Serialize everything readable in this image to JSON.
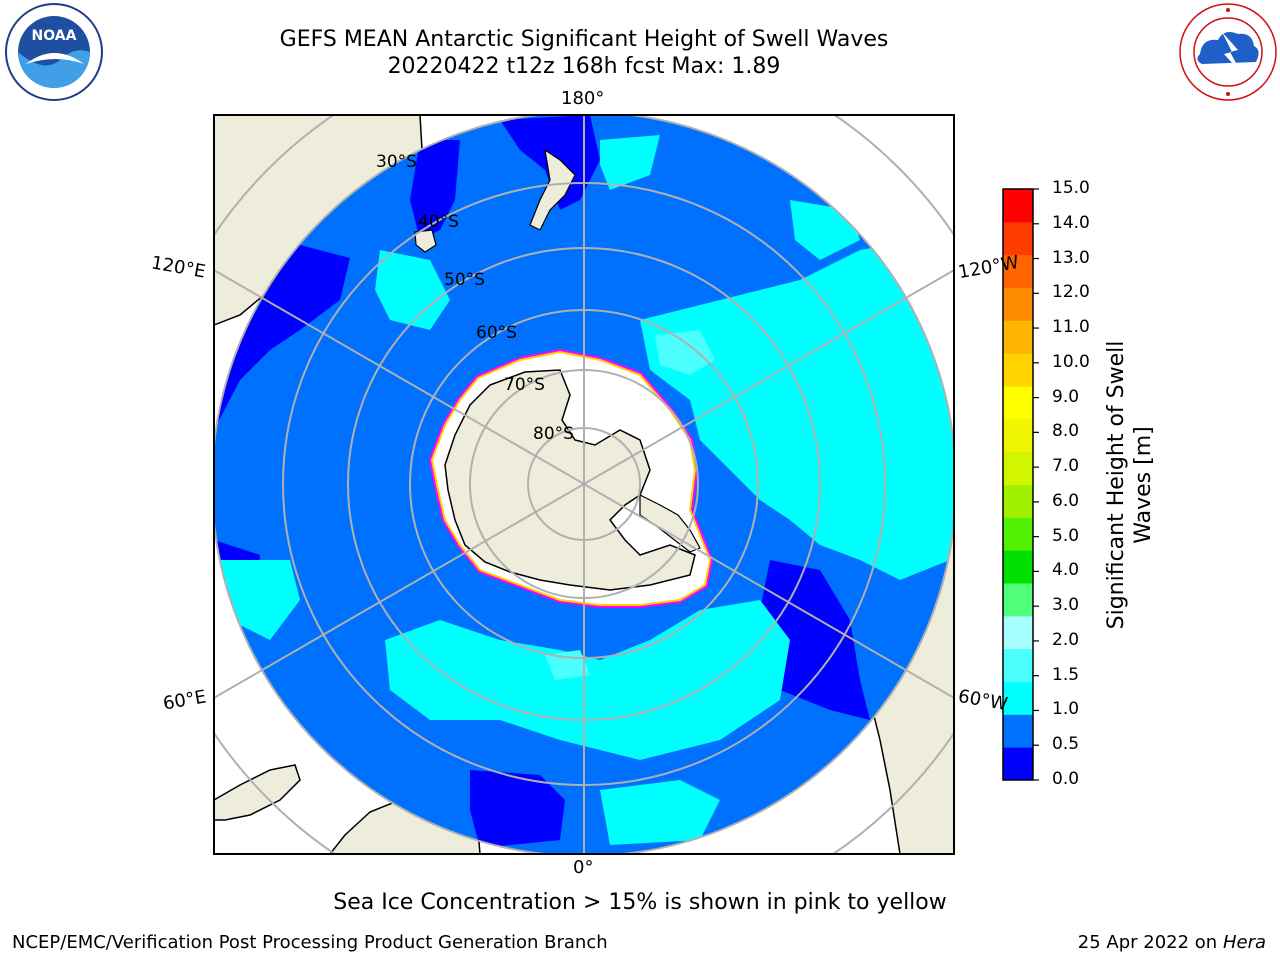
{
  "header": {
    "title_line1": "GEFS MEAN Antarctic Significant Height of Swell Waves",
    "title_line2": "20220422 t12z 168h fcst   Max: 1.89"
  },
  "logos": {
    "left": "noaa-logo",
    "right": "nws-logo"
  },
  "map": {
    "projection": "south-polar-stereographic",
    "longitude_labels": [
      "180°",
      "120°E",
      "120°W",
      "60°E",
      "60°W",
      "0°"
    ],
    "latitude_labels": [
      "30°S",
      "40°S",
      "50°S",
      "60°S",
      "70°S",
      "80°S"
    ]
  },
  "colorbar": {
    "title_line1": "Significant Height of Swell",
    "title_line2": "Waves [m]",
    "ticks": [
      "15.0",
      "14.0",
      "13.0",
      "12.0",
      "11.0",
      "10.0",
      "9.0",
      "8.0",
      "7.0",
      "6.0",
      "5.0",
      "4.0",
      "3.0",
      "2.0",
      "1.5",
      "1.0",
      "0.5",
      "0.0"
    ],
    "colors": [
      "#0000ff",
      "#0070ff",
      "#00ffff",
      "#4cffff",
      "#a8ffff",
      "#50ff78",
      "#00e000",
      "#50f000",
      "#a0f000",
      "#d2f500",
      "#f0f500",
      "#ffff00",
      "#ffd200",
      "#ffb400",
      "#ff8c00",
      "#ff6400",
      "#ff3c00",
      "#ff0000"
    ]
  },
  "footer": {
    "note": "Sea Ice Concentration > 15% is shown in pink to yellow",
    "left": "NCEP/EMC/Verification Post Processing Product Generation Branch",
    "right_date": "25 Apr 2022 on ",
    "right_host": "Hera"
  }
}
